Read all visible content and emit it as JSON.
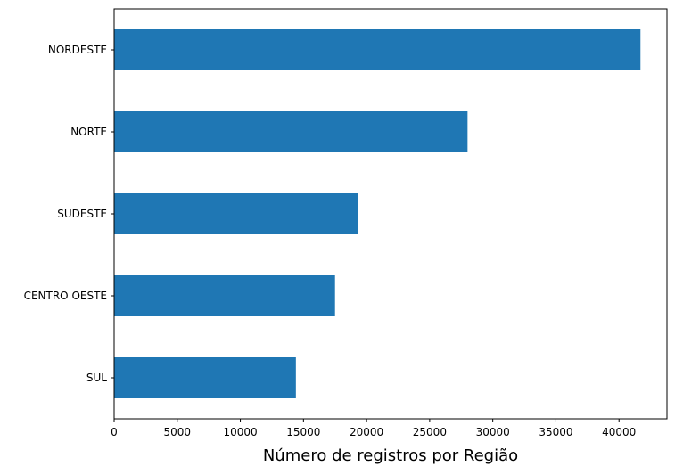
{
  "chart_data": {
    "type": "bar",
    "orientation": "horizontal",
    "categories": [
      "NORDESTE",
      "NORTE",
      "SUDESTE",
      "CENTRO OESTE",
      "SUL"
    ],
    "values": [
      41700,
      28000,
      19300,
      17500,
      14400
    ],
    "xlabel": "Número de registros por Região",
    "ylabel": "",
    "xlim": [
      0,
      43800
    ],
    "xticks": [
      0,
      5000,
      10000,
      15000,
      20000,
      25000,
      30000,
      35000,
      40000
    ],
    "xtick_labels": [
      "0",
      "5000",
      "10000",
      "15000",
      "20000",
      "25000",
      "30000",
      "35000",
      "40000"
    ],
    "bar_color": "#1f77b4",
    "grid": false,
    "legend": "none"
  }
}
